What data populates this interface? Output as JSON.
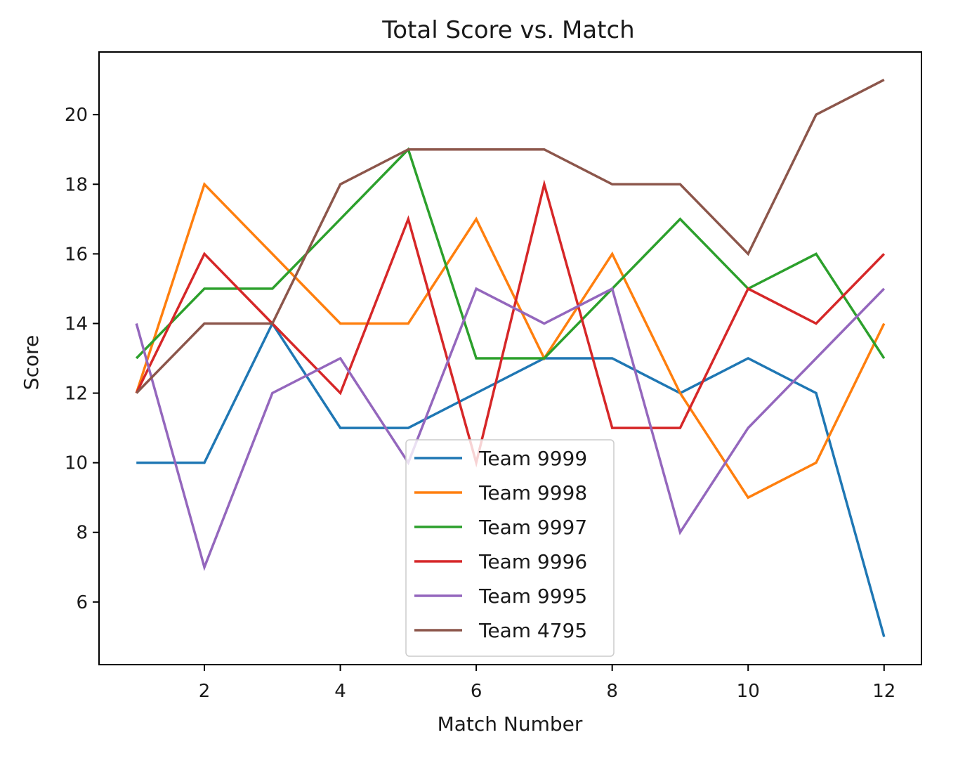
{
  "chart_data": {
    "type": "line",
    "title": "Total Score vs. Match",
    "xlabel": "Match Number",
    "ylabel": "Score",
    "x": [
      1,
      2,
      3,
      4,
      5,
      6,
      7,
      8,
      9,
      10,
      11,
      12
    ],
    "xlim": [
      0.45,
      12.55
    ],
    "ylim": [
      4.2,
      21.8
    ],
    "xticks": [
      2,
      4,
      6,
      8,
      10,
      12
    ],
    "yticks": [
      6,
      8,
      10,
      12,
      14,
      16,
      18,
      20
    ],
    "grid": false,
    "legend_position": "lower-center",
    "series": [
      {
        "name": "Team 9999",
        "color": "#1f77b4",
        "values": [
          10,
          10,
          14,
          11,
          11,
          12,
          13,
          13,
          12,
          13,
          12,
          5
        ]
      },
      {
        "name": "Team 9998",
        "color": "#ff7f0e",
        "values": [
          12,
          18,
          16,
          14,
          14,
          17,
          13,
          16,
          12,
          9,
          10,
          14
        ]
      },
      {
        "name": "Team 9997",
        "color": "#2ca02c",
        "values": [
          13,
          15,
          15,
          17,
          19,
          13,
          13,
          15,
          17,
          15,
          16,
          13
        ]
      },
      {
        "name": "Team 9996",
        "color": "#d62728",
        "values": [
          12,
          16,
          14,
          12,
          17,
          10,
          18,
          11,
          11,
          15,
          14,
          16
        ]
      },
      {
        "name": "Team 9995",
        "color": "#9467bd",
        "values": [
          14,
          7,
          12,
          13,
          10,
          15,
          14,
          15,
          8,
          11,
          13,
          15
        ]
      },
      {
        "name": "Team 4795",
        "color": "#8c564b",
        "values": [
          12,
          14,
          14,
          18,
          19,
          19,
          19,
          18,
          18,
          16,
          20,
          21
        ]
      }
    ]
  }
}
